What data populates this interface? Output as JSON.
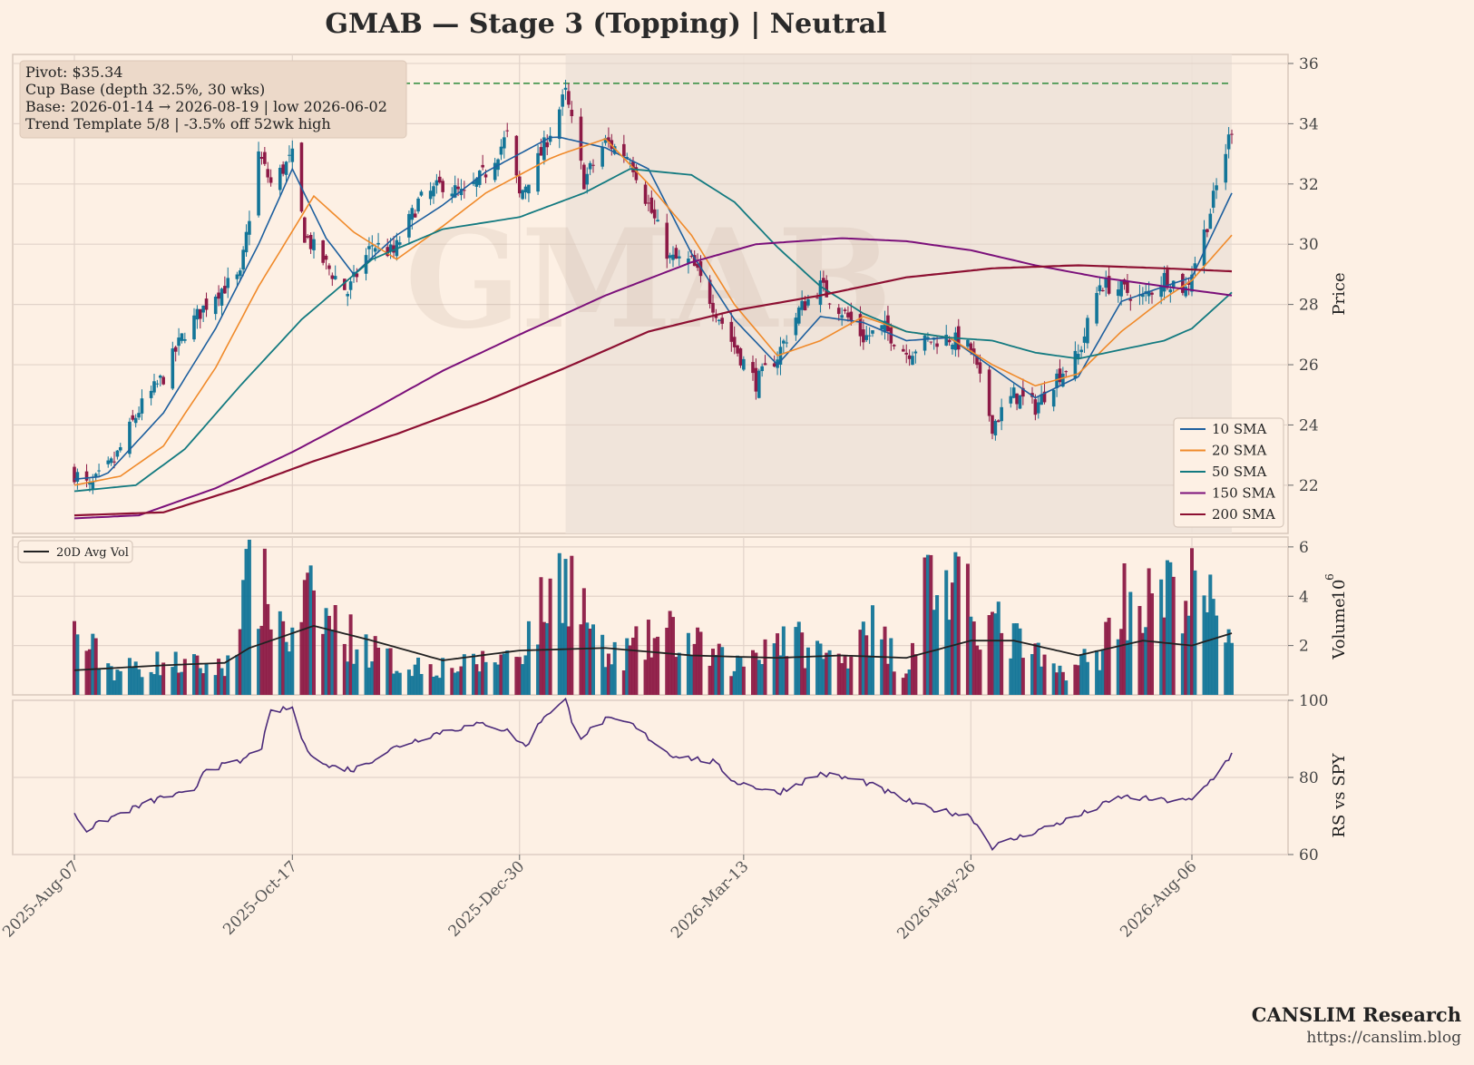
{
  "title": "GMAB  —  Stage 3 (Topping)  |  Neutral",
  "annotation": {
    "line1": "Pivot: $35.34",
    "line2": "Cup Base  (depth 32.5%, 30 wks)",
    "line3": "Base: 2026-01-14 → 2026-08-19  |  low 2026-06-02",
    "line4": "Trend Template 5/8  |  -3.5% off 52wk high"
  },
  "footer": {
    "brand": "CANSLIM Research",
    "url": "https://canslim.blog"
  },
  "watermark": "GMAB",
  "colors": {
    "background": "#fdf0e4",
    "base_shade": "#eee2d8",
    "up": "#137598",
    "down": "#8d1a46",
    "sma10": "#1d5f9e",
    "sma20": "#f08a2a",
    "sma50": "#137a80",
    "sma150": "#7b107a",
    "sma200": "#8d1032",
    "pivot": "#2e8b3a",
    "rs": "#4b2a7a",
    "avgvol": "#222222",
    "grid": "#e2d3c9"
  },
  "chart_data": [
    {
      "type": "candlestick",
      "ylabel": "Price",
      "ylim": [
        20.4,
        36.3
      ],
      "yticks": [
        22,
        24,
        26,
        28,
        30,
        32,
        34,
        36
      ],
      "xtick_labels": [
        "2025-Aug-07",
        "2025-Oct-17",
        "2025-Dec-30",
        "2026-Mar-13",
        "2026-May-26",
        "2026-Aug-06"
      ],
      "base_range": [
        "2026-01-14",
        "2026-08-19"
      ],
      "pivot": 35.34,
      "close_keypoints": [
        [
          "2025-08-07",
          22.4
        ],
        [
          "2025-08-12",
          21.9
        ],
        [
          "2025-08-20",
          22.8
        ],
        [
          "2025-08-28",
          24.5
        ],
        [
          "2025-09-05",
          25.6
        ],
        [
          "2025-09-12",
          27.1
        ],
        [
          "2025-09-22",
          28.4
        ],
        [
          "2025-09-30",
          28.9
        ],
        [
          "2025-10-06",
          33.0
        ],
        [
          "2025-10-10",
          32.0
        ],
        [
          "2025-10-17",
          32.9
        ],
        [
          "2025-10-21",
          30.3
        ],
        [
          "2025-10-28",
          29.3
        ],
        [
          "2025-11-04",
          28.4
        ],
        [
          "2025-11-12",
          30.0
        ],
        [
          "2025-11-19",
          29.7
        ],
        [
          "2025-11-27",
          31.4
        ],
        [
          "2025-12-05",
          32.0
        ],
        [
          "2025-12-12",
          31.6
        ],
        [
          "2025-12-19",
          32.4
        ],
        [
          "2025-12-26",
          33.6
        ],
        [
          "2025-12-30",
          31.6
        ],
        [
          "2026-01-06",
          33.0
        ],
        [
          "2026-01-14",
          35.0
        ],
        [
          "2026-01-20",
          32.1
        ],
        [
          "2026-01-27",
          33.4
        ],
        [
          "2026-02-04",
          32.9
        ],
        [
          "2026-02-10",
          31.3
        ],
        [
          "2026-02-17",
          29.5
        ],
        [
          "2026-02-24",
          29.4
        ],
        [
          "2026-03-03",
          28.0
        ],
        [
          "2026-03-10",
          26.6
        ],
        [
          "2026-03-17",
          25.4
        ],
        [
          "2026-03-24",
          26.3
        ],
        [
          "2026-03-31",
          27.8
        ],
        [
          "2026-04-07",
          28.6
        ],
        [
          "2026-04-14",
          27.8
        ],
        [
          "2026-04-21",
          26.9
        ],
        [
          "2026-04-28",
          27.2
        ],
        [
          "2026-05-05",
          26.4
        ],
        [
          "2026-05-12",
          26.8
        ],
        [
          "2026-05-19",
          26.9
        ],
        [
          "2026-05-26",
          26.5
        ],
        [
          "2026-06-02",
          24.0
        ],
        [
          "2026-06-09",
          25.0
        ],
        [
          "2026-06-16",
          24.6
        ],
        [
          "2026-06-23",
          25.6
        ],
        [
          "2026-06-30",
          26.3
        ],
        [
          "2026-07-07",
          28.7
        ],
        [
          "2026-07-14",
          28.5
        ],
        [
          "2026-07-21",
          28.2
        ],
        [
          "2026-07-28",
          28.9
        ],
        [
          "2026-08-04",
          28.5
        ],
        [
          "2026-08-11",
          30.7
        ],
        [
          "2026-08-19",
          33.9
        ]
      ],
      "sma": {
        "10 SMA": [
          [
            "2025-08-07",
            22.2
          ],
          [
            "2025-08-17",
            22.3
          ],
          [
            "2025-09-05",
            24.4
          ],
          [
            "2025-09-22",
            27.2
          ],
          [
            "2025-10-06",
            30.0
          ],
          [
            "2025-10-17",
            32.5
          ],
          [
            "2025-10-28",
            30.2
          ],
          [
            "2025-11-06",
            29.0
          ],
          [
            "2025-11-20",
            30.3
          ],
          [
            "2025-12-05",
            31.3
          ],
          [
            "2025-12-19",
            32.4
          ],
          [
            "2026-01-10",
            33.6
          ],
          [
            "2026-01-27",
            33.2
          ],
          [
            "2026-02-10",
            32.5
          ],
          [
            "2026-02-24",
            29.7
          ],
          [
            "2026-03-10",
            27.5
          ],
          [
            "2026-03-24",
            26.0
          ],
          [
            "2026-04-07",
            27.6
          ],
          [
            "2026-04-21",
            27.4
          ],
          [
            "2026-05-05",
            26.8
          ],
          [
            "2026-05-19",
            26.9
          ],
          [
            "2026-06-02",
            25.9
          ],
          [
            "2026-06-16",
            24.9
          ],
          [
            "2026-06-30",
            25.6
          ],
          [
            "2026-07-14",
            28.1
          ],
          [
            "2026-07-28",
            28.6
          ],
          [
            "2026-08-06",
            28.9
          ],
          [
            "2026-08-19",
            31.7
          ]
        ],
        "20 SMA": [
          [
            "2025-08-07",
            22.0
          ],
          [
            "2025-08-22",
            22.3
          ],
          [
            "2025-09-05",
            23.3
          ],
          [
            "2025-09-22",
            25.9
          ],
          [
            "2025-10-06",
            28.6
          ],
          [
            "2025-10-24",
            31.6
          ],
          [
            "2025-11-06",
            30.4
          ],
          [
            "2025-11-20",
            29.5
          ],
          [
            "2025-12-05",
            30.6
          ],
          [
            "2025-12-19",
            31.7
          ],
          [
            "2026-01-10",
            32.9
          ],
          [
            "2026-01-27",
            33.5
          ],
          [
            "2026-02-10",
            32.0
          ],
          [
            "2026-02-24",
            30.3
          ],
          [
            "2026-03-10",
            28.0
          ],
          [
            "2026-03-24",
            26.3
          ],
          [
            "2026-04-07",
            26.8
          ],
          [
            "2026-04-21",
            27.6
          ],
          [
            "2026-05-05",
            27.1
          ],
          [
            "2026-05-19",
            26.9
          ],
          [
            "2026-06-02",
            26.0
          ],
          [
            "2026-06-16",
            25.3
          ],
          [
            "2026-06-30",
            25.7
          ],
          [
            "2026-07-14",
            27.1
          ],
          [
            "2026-07-28",
            28.2
          ],
          [
            "2026-08-06",
            28.8
          ],
          [
            "2026-08-19",
            30.3
          ]
        ],
        "50 SMA": [
          [
            "2025-08-07",
            21.8
          ],
          [
            "2025-08-27",
            22.0
          ],
          [
            "2025-09-12",
            23.2
          ],
          [
            "2025-09-30",
            25.3
          ],
          [
            "2025-10-20",
            27.5
          ],
          [
            "2025-11-12",
            29.5
          ],
          [
            "2025-12-05",
            30.5
          ],
          [
            "2025-12-30",
            30.9
          ],
          [
            "2026-01-20",
            31.7
          ],
          [
            "2026-02-04",
            32.5
          ],
          [
            "2026-02-24",
            32.3
          ],
          [
            "2026-03-10",
            31.4
          ],
          [
            "2026-03-24",
            29.9
          ],
          [
            "2026-04-07",
            28.6
          ],
          [
            "2026-04-21",
            27.7
          ],
          [
            "2026-05-05",
            27.1
          ],
          [
            "2026-05-19",
            26.9
          ],
          [
            "2026-06-02",
            26.8
          ],
          [
            "2026-06-16",
            26.4
          ],
          [
            "2026-06-30",
            26.2
          ],
          [
            "2026-07-14",
            26.5
          ],
          [
            "2026-07-28",
            26.8
          ],
          [
            "2026-08-06",
            27.2
          ],
          [
            "2026-08-19",
            28.4
          ]
        ],
        "150 SMA": [
          [
            "2025-08-07",
            20.9
          ],
          [
            "2025-08-28",
            21.0
          ],
          [
            "2025-09-22",
            21.9
          ],
          [
            "2025-10-17",
            23.1
          ],
          [
            "2025-11-12",
            24.5
          ],
          [
            "2025-12-05",
            25.8
          ],
          [
            "2025-12-30",
            27.0
          ],
          [
            "2026-01-27",
            28.3
          ],
          [
            "2026-02-24",
            29.4
          ],
          [
            "2026-03-17",
            30.0
          ],
          [
            "2026-04-14",
            30.2
          ],
          [
            "2026-05-05",
            30.1
          ],
          [
            "2026-05-26",
            29.8
          ],
          [
            "2026-06-16",
            29.3
          ],
          [
            "2026-07-07",
            28.9
          ],
          [
            "2026-07-28",
            28.6
          ],
          [
            "2026-08-19",
            28.3
          ]
        ],
        "200 SMA": [
          [
            "2025-08-07",
            21.0
          ],
          [
            "2025-09-05",
            21.1
          ],
          [
            "2025-09-30",
            21.9
          ],
          [
            "2025-10-24",
            22.8
          ],
          [
            "2025-11-20",
            23.7
          ],
          [
            "2025-12-19",
            24.8
          ],
          [
            "2026-01-14",
            25.9
          ],
          [
            "2026-02-10",
            27.1
          ],
          [
            "2026-03-10",
            27.8
          ],
          [
            "2026-04-07",
            28.3
          ],
          [
            "2026-05-05",
            28.9
          ],
          [
            "2026-06-02",
            29.2
          ],
          [
            "2026-06-30",
            29.3
          ],
          [
            "2026-07-28",
            29.2
          ],
          [
            "2026-08-19",
            29.1
          ]
        ]
      },
      "legend": [
        "10 SMA",
        "20 SMA",
        "50 SMA",
        "150 SMA",
        "200 SMA"
      ],
      "legend_position": "lower-right"
    },
    {
      "type": "bar",
      "ylabel": "Volume",
      "exponent_label": "1e6",
      "ylim": [
        0,
        6.4
      ],
      "yticks": [
        2,
        4,
        6
      ],
      "legend": [
        "20D Avg Vol"
      ],
      "legend_position": "upper-left",
      "volume_keypoints": [
        [
          "2025-08-07",
          3.0
        ],
        [
          "2025-08-20",
          1.2
        ],
        [
          "2025-09-05",
          1.6
        ],
        [
          "2025-09-25",
          1.3
        ],
        [
          "2025-10-03",
          5.6
        ],
        [
          "2025-10-10",
          4.7
        ],
        [
          "2025-10-17",
          2.5
        ],
        [
          "2025-10-21",
          4.7
        ],
        [
          "2025-11-04",
          2.9
        ],
        [
          "2025-11-20",
          1.5
        ],
        [
          "2025-12-12",
          1.4
        ],
        [
          "2025-12-30",
          2.1
        ],
        [
          "2026-01-14",
          6.3
        ],
        [
          "2026-01-27",
          1.7
        ],
        [
          "2026-02-17",
          3.0
        ],
        [
          "2026-03-10",
          1.4
        ],
        [
          "2026-03-24",
          3.0
        ],
        [
          "2026-04-14",
          1.6
        ],
        [
          "2026-04-21",
          3.8
        ],
        [
          "2026-05-05",
          1.2
        ],
        [
          "2026-05-12",
          5.9
        ],
        [
          "2026-05-19",
          5.2
        ],
        [
          "2026-06-02",
          3.5
        ],
        [
          "2026-06-23",
          1.1
        ],
        [
          "2026-07-07",
          2.0
        ],
        [
          "2026-07-14",
          4.9
        ],
        [
          "2026-07-21",
          4.5
        ],
        [
          "2026-08-06",
          5.2
        ],
        [
          "2026-08-13",
          4.1
        ],
        [
          "2026-08-19",
          3.2
        ]
      ],
      "avg_keypoints": [
        [
          "2025-08-07",
          1.0
        ],
        [
          "2025-09-05",
          1.2
        ],
        [
          "2025-09-25",
          1.3
        ],
        [
          "2025-10-03",
          1.9
        ],
        [
          "2025-10-24",
          2.8
        ],
        [
          "2025-11-12",
          2.2
        ],
        [
          "2025-12-05",
          1.4
        ],
        [
          "2025-12-30",
          1.8
        ],
        [
          "2026-01-27",
          1.9
        ],
        [
          "2026-02-24",
          1.6
        ],
        [
          "2026-03-24",
          1.5
        ],
        [
          "2026-04-14",
          1.6
        ],
        [
          "2026-05-05",
          1.5
        ],
        [
          "2026-05-26",
          2.2
        ],
        [
          "2026-06-09",
          2.2
        ],
        [
          "2026-06-30",
          1.6
        ],
        [
          "2026-07-21",
          2.2
        ],
        [
          "2026-08-06",
          2.0
        ],
        [
          "2026-08-19",
          2.5
        ]
      ]
    },
    {
      "type": "line",
      "ylabel": "RS vs SPY",
      "ylim": [
        60,
        100
      ],
      "yticks": [
        60,
        80,
        100
      ],
      "rs_keypoints": [
        [
          "2025-08-07",
          71
        ],
        [
          "2025-08-10",
          66
        ],
        [
          "2025-08-20",
          70
        ],
        [
          "2025-09-05",
          75
        ],
        [
          "2025-09-15",
          76
        ],
        [
          "2025-09-18",
          82
        ],
        [
          "2025-09-30",
          84
        ],
        [
          "2025-10-07",
          88
        ],
        [
          "2025-10-10",
          97
        ],
        [
          "2025-10-17",
          98
        ],
        [
          "2025-10-21",
          88
        ],
        [
          "2025-10-28",
          83
        ],
        [
          "2025-11-06",
          82
        ],
        [
          "2025-11-20",
          88
        ],
        [
          "2025-12-05",
          92
        ],
        [
          "2025-12-19",
          94
        ],
        [
          "2025-12-26",
          92
        ],
        [
          "2026-01-01",
          88
        ],
        [
          "2026-01-07",
          96
        ],
        [
          "2026-01-14",
          100
        ],
        [
          "2026-01-18",
          90
        ],
        [
          "2026-01-27",
          95
        ],
        [
          "2026-02-04",
          94
        ],
        [
          "2026-02-17",
          86
        ],
        [
          "2026-02-24",
          85
        ],
        [
          "2026-03-03",
          84
        ],
        [
          "2026-03-10",
          79
        ],
        [
          "2026-03-24",
          76
        ],
        [
          "2026-04-07",
          81
        ],
        [
          "2026-04-21",
          79
        ],
        [
          "2026-05-05",
          74
        ],
        [
          "2026-05-12",
          72
        ],
        [
          "2026-05-26",
          70
        ],
        [
          "2026-06-02",
          62
        ],
        [
          "2026-06-16",
          66
        ],
        [
          "2026-06-30",
          70
        ],
        [
          "2026-07-14",
          75
        ],
        [
          "2026-07-28",
          74
        ],
        [
          "2026-08-06",
          74
        ],
        [
          "2026-08-13",
          80
        ],
        [
          "2026-08-19",
          86
        ]
      ]
    }
  ]
}
